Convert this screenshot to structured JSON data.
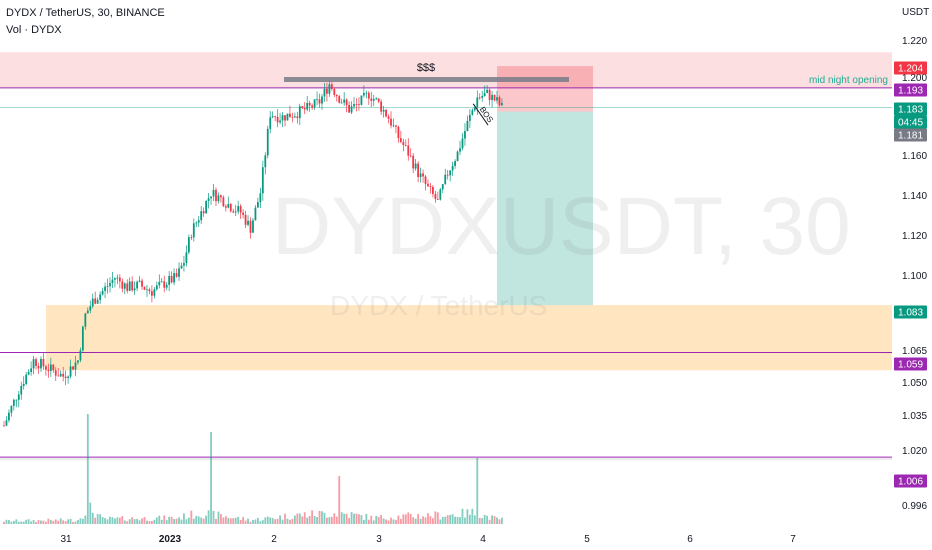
{
  "header": {
    "symbol": "DYDX / TetherUS, 30, BINANCE",
    "volume_label": "Vol · DYDX",
    "axis_unit": "USDT"
  },
  "watermark": {
    "ticker": "DYDXUSDT, 30",
    "name": "DYDX / TetherUS"
  },
  "chart_data": {
    "type": "candlestick",
    "title": "DYDX / TetherUS, 30, BINANCE",
    "ylabel": "USDT",
    "y_tick_labels": [
      "1.220",
      "1.200",
      "1.160",
      "1.140",
      "1.120",
      "1.100",
      "1.065",
      "1.050",
      "1.035",
      "1.020",
      "0.996"
    ],
    "x_tick_labels": [
      "31",
      "2023",
      "2",
      "3",
      "4",
      "5",
      "6",
      "7"
    ],
    "price_tags": [
      {
        "label": "1.204",
        "color": "#f23645"
      },
      {
        "label": "1.193",
        "color": "#9c27b0"
      },
      {
        "label": "1.183",
        "color": "#089981"
      },
      {
        "label": "04:45",
        "color": "#089981"
      },
      {
        "label": "1.181",
        "color": "#787b86"
      },
      {
        "label": "1.083",
        "color": "#089981"
      },
      {
        "label": "1.059",
        "color": "#9c27b0"
      },
      {
        "label": "1.006",
        "color": "#9c27b0"
      }
    ],
    "annotations": [
      "$$$",
      "mid night opening",
      "BOS"
    ],
    "horizontal_levels": [
      {
        "label": "1.193",
        "color": "#9c27b0"
      },
      {
        "label": "1.059",
        "color": "#9c27b0"
      },
      {
        "label": "1.006",
        "color": "#9c27b0"
      }
    ],
    "zones": [
      {
        "kind": "supply",
        "price_top": 1.211,
        "price_bottom": 1.193,
        "color": "#f7c5c8"
      },
      {
        "kind": "demand",
        "price_top": 1.083,
        "price_bottom": 1.05,
        "color": "#ffe0b2"
      }
    ],
    "position": {
      "kind": "short",
      "entry": 1.181,
      "stop": 1.204,
      "target": 1.083
    },
    "path_keypoints": [
      [
        0,
        1.022
      ],
      [
        6,
        1.04
      ],
      [
        12,
        1.055
      ],
      [
        18,
        1.051
      ],
      [
        24,
        1.047
      ],
      [
        30,
        1.055
      ],
      [
        33,
        1.078
      ],
      [
        36,
        1.085
      ],
      [
        40,
        1.09
      ],
      [
        45,
        1.097
      ],
      [
        50,
        1.092
      ],
      [
        55,
        1.093
      ],
      [
        60,
        1.09
      ],
      [
        65,
        1.094
      ],
      [
        70,
        1.097
      ],
      [
        73,
        1.105
      ],
      [
        76,
        1.12
      ],
      [
        80,
        1.13
      ],
      [
        84,
        1.14
      ],
      [
        88,
        1.137
      ],
      [
        92,
        1.133
      ],
      [
        96,
        1.13
      ],
      [
        100,
        1.122
      ],
      [
        104,
        1.14
      ],
      [
        106,
        1.16
      ],
      [
        108,
        1.18
      ],
      [
        112,
        1.178
      ],
      [
        118,
        1.18
      ],
      [
        124,
        1.183
      ],
      [
        128,
        1.186
      ],
      [
        132,
        1.195
      ],
      [
        136,
        1.188
      ],
      [
        140,
        1.182
      ],
      [
        144,
        1.185
      ],
      [
        148,
        1.19
      ],
      [
        152,
        1.185
      ],
      [
        156,
        1.178
      ],
      [
        160,
        1.168
      ],
      [
        164,
        1.16
      ],
      [
        168,
        1.15
      ],
      [
        172,
        1.142
      ],
      [
        176,
        1.135
      ],
      [
        180,
        1.15
      ],
      [
        184,
        1.16
      ],
      [
        188,
        1.175
      ],
      [
        192,
        1.188
      ],
      [
        196,
        1.19
      ],
      [
        200,
        1.186
      ],
      [
        202,
        1.183
      ]
    ],
    "volume_profile": [
      [
        0,
        3
      ],
      [
        30,
        4
      ],
      [
        34,
        17
      ],
      [
        40,
        5
      ],
      [
        70,
        6
      ],
      [
        80,
        11
      ],
      [
        100,
        4
      ],
      [
        120,
        9
      ],
      [
        136,
        11
      ],
      [
        150,
        6
      ],
      [
        165,
        8
      ],
      [
        180,
        9
      ],
      [
        190,
        11
      ],
      [
        200,
        5
      ]
    ]
  }
}
